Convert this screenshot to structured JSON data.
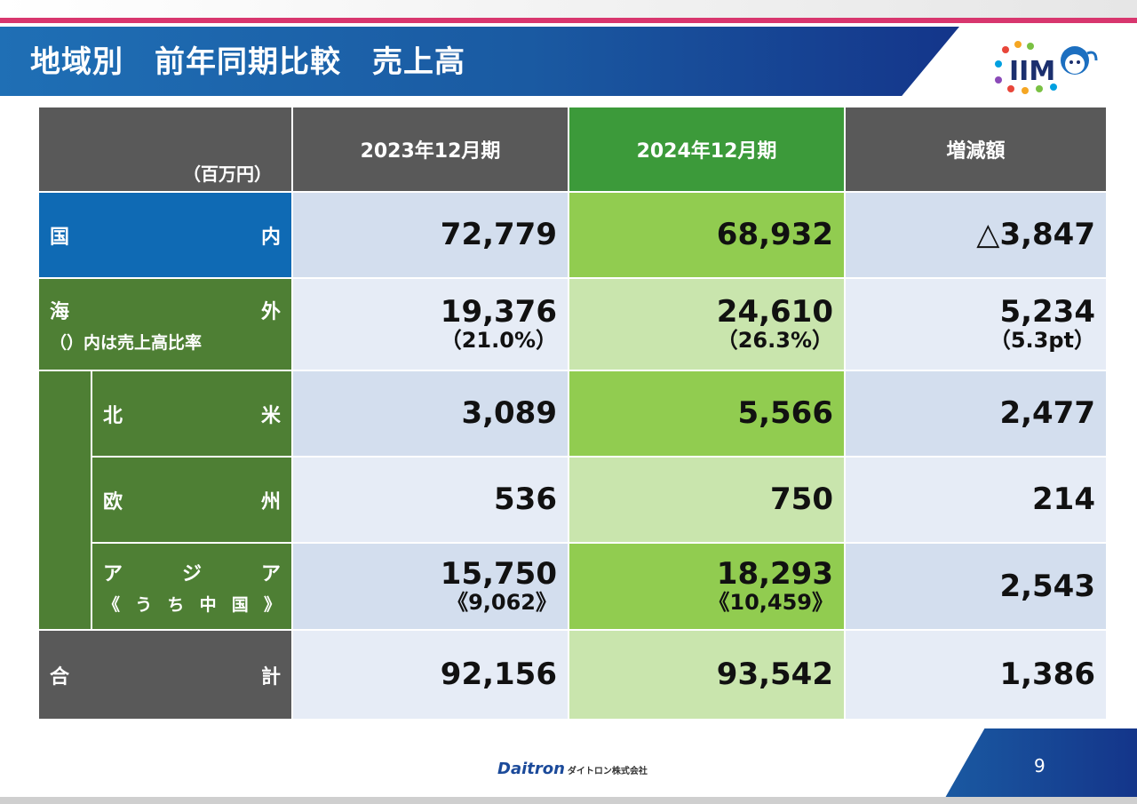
{
  "header": {
    "title": "地域別　前年同期比較　売上高"
  },
  "table": {
    "unit": "（百万円）",
    "columns": [
      "2023年12月期",
      "2024年12月期",
      "増減額"
    ],
    "rows": {
      "domestic": {
        "label_left": "国",
        "label_right": "内",
        "v2023": "72,779",
        "v2024": "68,932",
        "diff": "△3,847"
      },
      "overseas": {
        "label_left": "海",
        "label_right": "外",
        "note": "（）内は売上高比率",
        "v2023": "19,376",
        "v2023_ratio": "（21.0%）",
        "v2024": "24,610",
        "v2024_ratio": "（26.3%）",
        "diff": "5,234",
        "diff_ratio": "（5.3pt）"
      },
      "north_america": {
        "label_left": "北",
        "label_right": "米",
        "v2023": "3,089",
        "v2024": "5,566",
        "diff": "2,477"
      },
      "europe": {
        "label_left": "欧",
        "label_right": "州",
        "v2023": "536",
        "v2024": "750",
        "diff": "214"
      },
      "asia": {
        "label_chars": [
          "ア",
          "ジ",
          "ア"
        ],
        "sub_chars": [
          "《",
          "う",
          "ち",
          "中",
          "国",
          "》"
        ],
        "v2023": "15,750",
        "v2023_china": "《9,062》",
        "v2024": "18,293",
        "v2024_china": "《10,459》",
        "diff": "2,543"
      },
      "total": {
        "label_left": "合",
        "label_right": "計",
        "v2023": "92,156",
        "v2024": "93,542",
        "diff": "1,386"
      }
    }
  },
  "footer": {
    "company": "Daitron",
    "company_jp": "ダイトロン株式会社",
    "page_number": "9"
  },
  "colors": {
    "header_blue": "#1a5aa2",
    "accent_pink": "#d8366e",
    "label_blue": "#0f6ab4",
    "label_green": "#4e7f34",
    "col_green": "#3c9a3a",
    "header_gray": "#595959"
  }
}
